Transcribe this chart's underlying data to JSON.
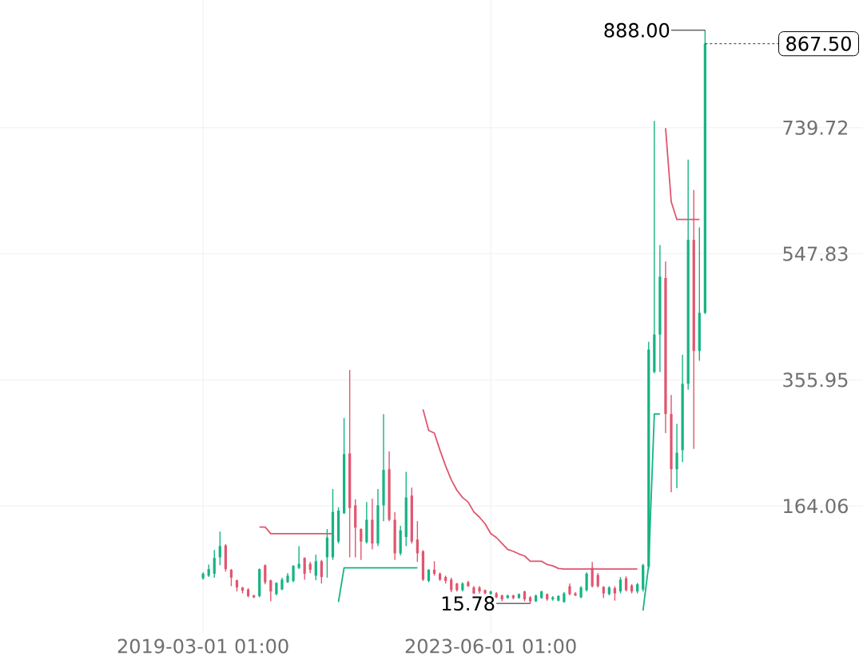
{
  "chart_data": {
    "type": "candlestick",
    "x": [
      "2019-03",
      "2019-04",
      "2019-05",
      "2019-06",
      "2019-07",
      "2019-08",
      "2019-09",
      "2019-10",
      "2019-11",
      "2019-12",
      "2020-01",
      "2020-02",
      "2020-03",
      "2020-04",
      "2020-05",
      "2020-06",
      "2020-07",
      "2020-08",
      "2020-09",
      "2020-10",
      "2020-11",
      "2020-12",
      "2021-01",
      "2021-02",
      "2021-03",
      "2021-04",
      "2021-05",
      "2021-06",
      "2021-07",
      "2021-08",
      "2021-09",
      "2021-10",
      "2021-11",
      "2021-12",
      "2022-01",
      "2022-02",
      "2022-03",
      "2022-04",
      "2022-05",
      "2022-06",
      "2022-07",
      "2022-08",
      "2022-09",
      "2022-10",
      "2022-11",
      "2022-12",
      "2023-01",
      "2023-02",
      "2023-03",
      "2023-04",
      "2023-05",
      "2023-06",
      "2023-07",
      "2023-08",
      "2023-09",
      "2023-10",
      "2023-11",
      "2023-12",
      "2024-01",
      "2024-02",
      "2024-03",
      "2024-04",
      "2024-05",
      "2024-06",
      "2024-07",
      "2024-08",
      "2024-09",
      "2024-10",
      "2024-11",
      "2024-12",
      "2025-01",
      "2025-02",
      "2025-03",
      "2025-04",
      "2025-05",
      "2025-06",
      "2025-07",
      "2025-08",
      "2025-09",
      "2025-10",
      "2025-11",
      "2025-12",
      "2026-01",
      "2026-02",
      "2026-03",
      "2026-04",
      "2026-05",
      "2026-06",
      "2026-07",
      "2026-08"
    ],
    "ohlc": [
      [
        54,
        63,
        52,
        61
      ],
      [
        58,
        75,
        56,
        68
      ],
      [
        61,
        97,
        55,
        85
      ],
      [
        86,
        125,
        74,
        103
      ],
      [
        104,
        106,
        64,
        68
      ],
      [
        67,
        68,
        42,
        55
      ],
      [
        51,
        52,
        34,
        40
      ],
      [
        40,
        41,
        31,
        35
      ],
      [
        37,
        39,
        25,
        27
      ],
      [
        28,
        29,
        24,
        25
      ],
      [
        27,
        69,
        25,
        68
      ],
      [
        74,
        75,
        45,
        48
      ],
      [
        51,
        52,
        19,
        34
      ],
      [
        30,
        48,
        28,
        47
      ],
      [
        37,
        55,
        36,
        52
      ],
      [
        48,
        62,
        47,
        58
      ],
      [
        50,
        74,
        48,
        73
      ],
      [
        70,
        103,
        68,
        76
      ],
      [
        85,
        86,
        52,
        61
      ],
      [
        76,
        79,
        62,
        67
      ],
      [
        58,
        90,
        51,
        80
      ],
      [
        80,
        82,
        46,
        56
      ],
      [
        86,
        129,
        55,
        116
      ],
      [
        86,
        190,
        82,
        155
      ],
      [
        110,
        162,
        107,
        157
      ],
      [
        153,
        298,
        152,
        243
      ],
      [
        244,
        371,
        86,
        161
      ],
      [
        165,
        174,
        86,
        131
      ],
      [
        129,
        130,
        82,
        110
      ],
      [
        109,
        170,
        107,
        143
      ],
      [
        143,
        175,
        98,
        107
      ],
      [
        107,
        190,
        103,
        165
      ],
      [
        165,
        304,
        141,
        219
      ],
      [
        220,
        247,
        141,
        143
      ],
      [
        143,
        155,
        82,
        92
      ],
      [
        92,
        134,
        89,
        127
      ],
      [
        117,
        216,
        103,
        177
      ],
      [
        180,
        192,
        107,
        110
      ],
      [
        113,
        141,
        79,
        92
      ],
      [
        95,
        97,
        50,
        52
      ],
      [
        50,
        68,
        48,
        67
      ],
      [
        67,
        80,
        58,
        61
      ],
      [
        61,
        63,
        50,
        52
      ],
      [
        56,
        58,
        46,
        50
      ],
      [
        52,
        55,
        33,
        36
      ],
      [
        46,
        47,
        34,
        36
      ],
      [
        36,
        48,
        34,
        46
      ],
      [
        48,
        50,
        41,
        42
      ],
      [
        40,
        42,
        30,
        31
      ],
      [
        40,
        42,
        31,
        34
      ],
      [
        36,
        37,
        30,
        31
      ],
      [
        30,
        35,
        29,
        34
      ],
      [
        31,
        33,
        24,
        25
      ],
      [
        28,
        29,
        19,
        22
      ],
      [
        24,
        29,
        23,
        28
      ],
      [
        28,
        29,
        22,
        24
      ],
      [
        24,
        31,
        23,
        30
      ],
      [
        34,
        35,
        19,
        22
      ],
      [
        25,
        27,
        15.78,
        19
      ],
      [
        19,
        29,
        18,
        28
      ],
      [
        24,
        35,
        23,
        34
      ],
      [
        30,
        31,
        20,
        22
      ],
      [
        22,
        27,
        20,
        25
      ],
      [
        20,
        28,
        19,
        27
      ],
      [
        18,
        33,
        17,
        31
      ],
      [
        42,
        46,
        28,
        30
      ],
      [
        31,
        33,
        27,
        28
      ],
      [
        25,
        42,
        24,
        40
      ],
      [
        36,
        63,
        34,
        61
      ],
      [
        70,
        79,
        40,
        42
      ],
      [
        59,
        62,
        40,
        42
      ],
      [
        41,
        42,
        24,
        31
      ],
      [
        30,
        42,
        28,
        40
      ],
      [
        39,
        42,
        20,
        31
      ],
      [
        34,
        56,
        31,
        52
      ],
      [
        54,
        57,
        34,
        36
      ],
      [
        43,
        45,
        31,
        34
      ],
      [
        34,
        47,
        31,
        45
      ],
      [
        37,
        76,
        34,
        74
      ],
      [
        72,
        414,
        68,
        402
      ],
      [
        368,
        750,
        366,
        425
      ],
      [
        425,
        561,
        368,
        513
      ],
      [
        511,
        536,
        275,
        304
      ],
      [
        304,
        333,
        185,
        220
      ],
      [
        220,
        289,
        191,
        245
      ],
      [
        249,
        394,
        231,
        350
      ],
      [
        350,
        691,
        341,
        569
      ],
      [
        569,
        645,
        251,
        400
      ],
      [
        400,
        588,
        385,
        458
      ],
      [
        458,
        888,
        456,
        867.5
      ]
    ],
    "colors": [
      "#16b383",
      "#16b383",
      "#16b383",
      "#16b383",
      "#e0566f",
      "#e0566f",
      "#e0566f",
      "#e0566f",
      "#e0566f",
      "#e0566f",
      "#16b383",
      "#e0566f",
      "#e0566f",
      "#16b383",
      "#16b383",
      "#16b383",
      "#16b383",
      "#16b383",
      "#e0566f",
      "#e0566f",
      "#16b383",
      "#e0566f",
      "#16b383",
      "#16b383",
      "#16b383",
      "#16b383",
      "#e0566f",
      "#e0566f",
      "#e0566f",
      "#16b383",
      "#e0566f",
      "#16b383",
      "#16b383",
      "#e0566f",
      "#e0566f",
      "#16b383",
      "#16b383",
      "#e0566f",
      "#e0566f",
      "#e0566f",
      "#16b383",
      "#e0566f",
      "#e0566f",
      "#e0566f",
      "#e0566f",
      "#e0566f",
      "#16b383",
      "#e0566f",
      "#e0566f",
      "#e0566f",
      "#e0566f",
      "#16b383",
      "#e0566f",
      "#e0566f",
      "#16b383",
      "#e0566f",
      "#16b383",
      "#e0566f",
      "#e0566f",
      "#16b383",
      "#16b383",
      "#e0566f",
      "#16b383",
      "#16b383",
      "#16b383",
      "#e0566f",
      "#e0566f",
      "#16b383",
      "#16b383",
      "#e0566f",
      "#e0566f",
      "#e0566f",
      "#16b383",
      "#e0566f",
      "#16b383",
      "#e0566f",
      "#e0566f",
      "#16b383",
      "#16b383",
      "#16b383",
      "#16b383",
      "#16b383",
      "#e0566f",
      "#e0566f",
      "#16b383",
      "#16b383",
      "#16b383",
      "#e0566f",
      "#16b383",
      "#16b383"
    ],
    "series": [
      {
        "type": "line",
        "color": "#e0566f",
        "x": [
          "2020-01",
          "2020-02",
          "2020-03",
          "2021-02"
        ],
        "values": [
          132,
          132,
          122,
          122
        ]
      },
      {
        "type": "line",
        "color": "#16b383",
        "x": [
          "2021-03",
          "2021-04",
          "2022-05"
        ],
        "values": [
          18,
          70,
          70
        ]
      },
      {
        "type": "line",
        "color": "#e0566f",
        "x": [
          "2022-06",
          "2022-07",
          "2022-08",
          "2022-09",
          "2022-10",
          "2022-11",
          "2022-12",
          "2023-01",
          "2023-02",
          "2023-03",
          "2023-04",
          "2023-05",
          "2023-06",
          "2023-07",
          "2023-08",
          "2023-09",
          "2023-10",
          "2023-11",
          "2023-12",
          "2024-01",
          "2024-02",
          "2024-03",
          "2024-04",
          "2024-05",
          "2024-06",
          "2024-07",
          "2025-08"
        ],
        "values": [
          311,
          279,
          275,
          249,
          225,
          204,
          188,
          177,
          170,
          155,
          147,
          137,
          122,
          116,
          107,
          98,
          95,
          91,
          88,
          80,
          80,
          80,
          75,
          73,
          69,
          68,
          68
        ]
      },
      {
        "type": "line",
        "color": "#16b383",
        "x": [
          "2025-09",
          "2025-10",
          "2025-11",
          "2025-12"
        ],
        "values": [
          5,
          74,
          304,
          304
        ]
      },
      {
        "type": "line",
        "color": "#e0566f",
        "x": [
          "2026-01",
          "2026-02",
          "2026-03",
          "2026-07"
        ],
        "values": [
          739,
          627,
          600,
          600
        ]
      }
    ],
    "xlim": [
      "2016-03",
      "2028-12"
    ],
    "ylim": [
      -29,
      934
    ],
    "xticks": [
      {
        "value": "2019-03-01T01:00",
        "label": "2019-03-01 01:00"
      },
      {
        "value": "2023-06-01T01:00",
        "label": "2023-06-01 01:00"
      }
    ],
    "yticks": [
      164.06,
      355.95,
      547.83,
      739.72
    ],
    "grid": true,
    "ref_lines": [
      {
        "axis": "y",
        "value": 867.5,
        "label": "867.50",
        "line_style": "dashed"
      }
    ],
    "annotations": [
      {
        "text": "888.00",
        "x": "2026-08",
        "y": 888
      },
      {
        "text": "15.78",
        "x": "2024-01",
        "y": 15.78
      }
    ]
  }
}
